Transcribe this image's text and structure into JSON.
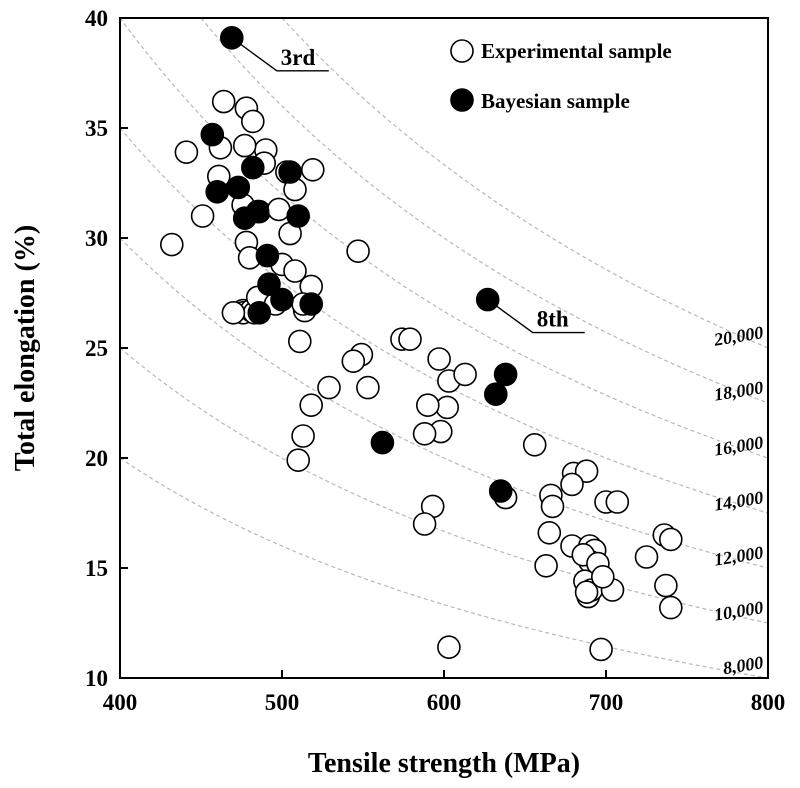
{
  "chart_data": {
    "type": "scatter",
    "title": "",
    "xlabel": "Tensile strength (MPa)",
    "ylabel": "Total elongation (%)",
    "xlim": [
      400,
      800
    ],
    "ylim": [
      10,
      40
    ],
    "xticks": [
      "400",
      "500",
      "600",
      "700",
      "800"
    ],
    "yticks": [
      "10",
      "15",
      "20",
      "25",
      "30",
      "35",
      "40"
    ],
    "grid": false,
    "legend_position": "top-right",
    "series": [
      {
        "name": "Experimental sample",
        "marker": "open-circle",
        "color": "#ffffff",
        "x": [
          464,
          478,
          482,
          441,
          462,
          490,
          519,
          461,
          477,
          489,
          503,
          508,
          476,
          486,
          451,
          498,
          505,
          478,
          432,
          547,
          500,
          508,
          480,
          518,
          476,
          476,
          481,
          483,
          514,
          485,
          496,
          511,
          574,
          579,
          597,
          549,
          529,
          544,
          553,
          603,
          613,
          518,
          602,
          590,
          598,
          513,
          510,
          593,
          588,
          656,
          680,
          688,
          666,
          667,
          700,
          679,
          707,
          679,
          690,
          693,
          663,
          665,
          690,
          686,
          687,
          695,
          689,
          691,
          688,
          704,
          725,
          736,
          740,
          698,
          737,
          740,
          603,
          588,
          638,
          697,
          513,
          470
        ],
        "y": [
          36.2,
          35.9,
          35.3,
          33.9,
          34.1,
          34.0,
          33.1,
          32.8,
          34.2,
          33.4,
          33.0,
          32.2,
          31.5,
          31.2,
          31.0,
          31.3,
          30.2,
          29.8,
          29.7,
          29.4,
          28.8,
          28.5,
          29.1,
          27.8,
          26.7,
          26.6,
          26.7,
          26.6,
          26.7,
          27.3,
          27.0,
          25.3,
          25.4,
          25.4,
          24.5,
          24.7,
          23.2,
          24.4,
          23.2,
          23.5,
          23.8,
          22.4,
          22.3,
          22.4,
          21.2,
          21.0,
          19.9,
          17.8,
          17.0,
          20.6,
          19.3,
          19.4,
          18.3,
          17.8,
          18.0,
          18.8,
          18.0,
          16.0,
          16.0,
          15.8,
          15.1,
          16.6,
          15.3,
          15.6,
          14.4,
          15.2,
          13.7,
          14.0,
          13.9,
          14.0,
          15.5,
          16.5,
          16.3,
          14.6,
          14.2,
          13.2,
          11.4,
          21.1,
          18.2,
          11.3,
          27.0,
          26.6
        ]
      },
      {
        "name": "Bayesian sample",
        "marker": "filled-circle",
        "color": "#000000",
        "x": [
          469,
          457,
          460,
          473,
          482,
          485,
          505,
          510,
          477,
          491,
          492,
          500,
          518,
          486,
          627,
          632,
          638,
          562,
          635
        ],
        "y": [
          39.1,
          34.7,
          32.1,
          32.3,
          33.2,
          31.2,
          33.0,
          31.0,
          30.9,
          29.2,
          27.9,
          27.2,
          27.0,
          26.6,
          27.2,
          22.9,
          23.8,
          20.7,
          18.5
        ]
      }
    ],
    "iso_curves": {
      "quantity": "Tensile strength × Total elongation",
      "levels": [
        8000,
        10000,
        12000,
        14000,
        16000,
        18000,
        20000
      ],
      "labels": [
        "8,000",
        "10,000",
        "12,000",
        "14,000",
        "16,000",
        "18,000",
        "20,000"
      ]
    },
    "annotations": [
      {
        "text": "3rd",
        "x": 469,
        "y": 39.1
      },
      {
        "text": "8th",
        "x": 627,
        "y": 27.2
      }
    ]
  }
}
